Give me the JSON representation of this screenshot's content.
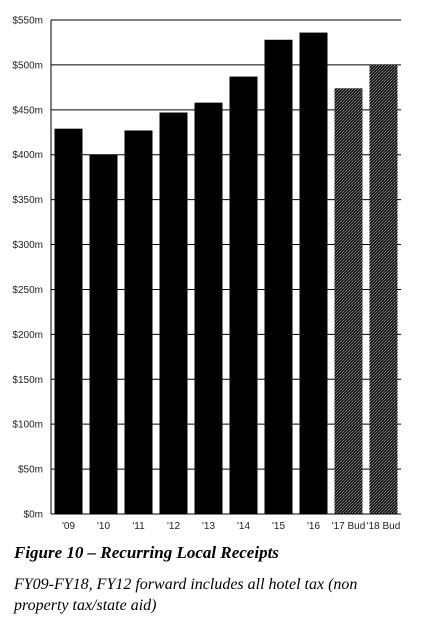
{
  "chart_data": {
    "type": "bar",
    "categories": [
      "'09",
      "'10",
      "'11",
      "'12",
      "'13",
      "'14",
      "'15",
      "'16",
      "'17 Bud",
      "'18 Bud"
    ],
    "values": [
      429,
      400,
      427,
      447,
      458,
      487,
      528,
      536,
      474,
      500
    ],
    "budget_flags": [
      false,
      false,
      false,
      false,
      false,
      false,
      false,
      false,
      true,
      true
    ],
    "ylim": [
      0,
      550
    ],
    "yticks": [
      0,
      50,
      100,
      150,
      200,
      250,
      300,
      350,
      400,
      450,
      500,
      550
    ],
    "ytick_labels": [
      "$0m",
      "$50m",
      "$100m",
      "$150m",
      "$200m",
      "$250m",
      "$300m",
      "$350m",
      "$400m",
      "$450m",
      "$500m",
      "$550m"
    ],
    "grid": true,
    "colors": {
      "actual": "#000000",
      "budget": "#3a3a3a",
      "grid": "#000000"
    }
  },
  "caption": {
    "title": "Figure 10 – Recurring Local Receipts",
    "subtitle": "FY09-FY18, FY12 forward includes all hotel tax (non property tax/state aid)"
  }
}
